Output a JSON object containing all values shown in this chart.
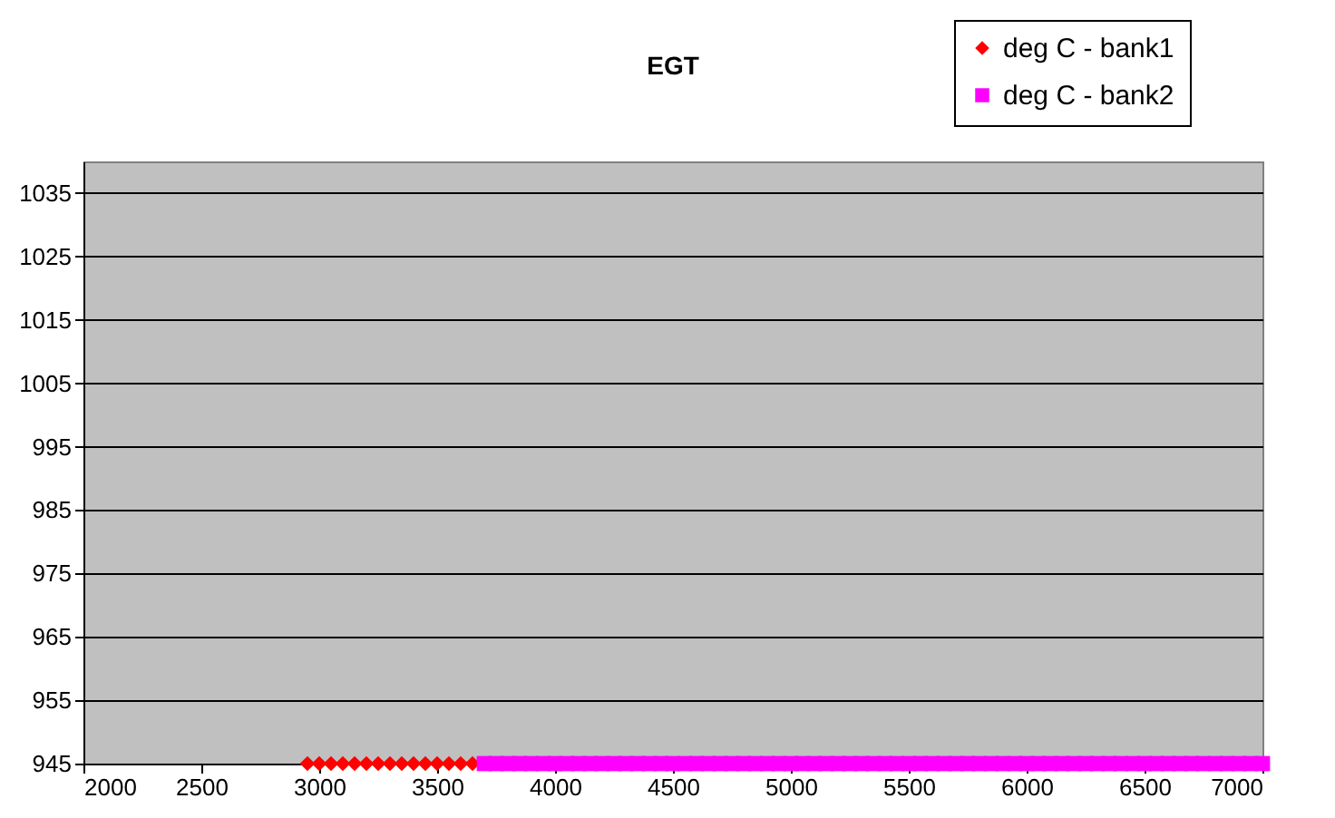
{
  "chart_data": {
    "type": "scatter",
    "title": "EGT",
    "xlim": [
      2000,
      7000
    ],
    "xticks": [
      2000,
      2500,
      3000,
      3500,
      4000,
      4500,
      5000,
      5500,
      6000,
      6500,
      7000
    ],
    "ylim": [
      945,
      1040
    ],
    "yticks": [
      945,
      955,
      965,
      975,
      985,
      995,
      1005,
      1015,
      1025,
      1035
    ],
    "grid": "y",
    "legend": "top right",
    "series": [
      {
        "name": "deg C - bank1",
        "color": "#ff0000",
        "marker": "diamond",
        "x": [
          2950,
          3000,
          3050,
          3100,
          3150,
          3200,
          3250,
          3300,
          3350,
          3400,
          3450,
          3500,
          3550,
          3600,
          3650
        ],
        "values": [
          945,
          945,
          945,
          945,
          945,
          945,
          945,
          945,
          945,
          945,
          945,
          945,
          945,
          945,
          945
        ]
      },
      {
        "name": "deg C - bank2",
        "color": "#ff00ff",
        "marker": "square",
        "x": [
          3700,
          3750,
          3800,
          3850,
          3900,
          3950,
          4000,
          4050,
          4100,
          4150,
          4200,
          4250,
          4300,
          4350,
          4400,
          4450,
          4500,
          4550,
          4600,
          4650,
          4700,
          4750,
          4800,
          4850,
          4900,
          4950,
          5000,
          5050,
          5100,
          5150,
          5200,
          5250,
          5300,
          5350,
          5400,
          5450,
          5500,
          5550,
          5600,
          5650,
          5700,
          5750,
          5800,
          5850,
          5900,
          5950,
          6000,
          6050,
          6100,
          6150,
          6200,
          6250,
          6300,
          6350,
          6400,
          6450,
          6500,
          6550,
          6600,
          6650,
          6700,
          6750,
          6800,
          6850,
          6900,
          6950,
          7000
        ],
        "values": [
          945,
          945,
          945,
          945,
          945,
          945,
          945,
          945,
          945,
          945,
          945,
          945,
          945,
          945,
          945,
          945,
          945,
          945,
          945,
          945,
          945,
          945,
          945,
          945,
          945,
          945,
          945,
          945,
          945,
          945,
          945,
          945,
          945,
          945,
          945,
          945,
          945,
          945,
          945,
          945,
          945,
          945,
          945,
          945,
          945,
          945,
          945,
          945,
          945,
          945,
          945,
          945,
          945,
          945,
          945,
          945,
          945,
          945,
          945,
          945,
          945,
          945,
          945,
          945,
          945,
          945,
          945
        ]
      }
    ]
  }
}
